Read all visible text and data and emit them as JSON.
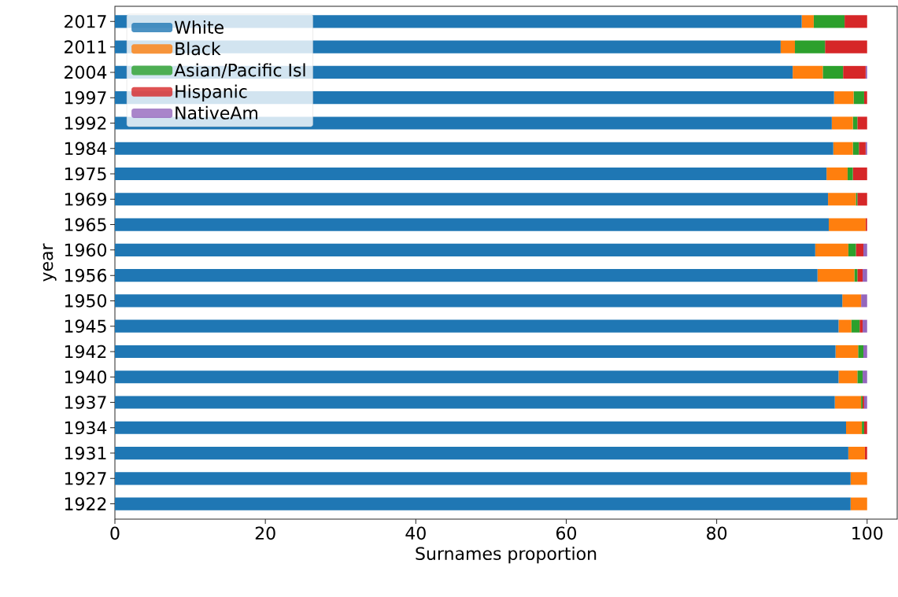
{
  "chart_data": {
    "type": "bar",
    "orientation": "horizontal",
    "stacked": true,
    "ylabel": "year",
    "xlabel": "Surnames proportion",
    "categories": [
      "2017",
      "2011",
      "2004",
      "1997",
      "1992",
      "1984",
      "1975",
      "1969",
      "1965",
      "1960",
      "1956",
      "1950",
      "1945",
      "1942",
      "1940",
      "1937",
      "1934",
      "1931",
      "1927",
      "1922"
    ],
    "series": [
      {
        "name": "White",
        "color": "#1f77b4",
        "values": [
          91.3,
          88.5,
          90.1,
          95.6,
          95.3,
          95.5,
          94.6,
          94.8,
          94.9,
          93.1,
          93.4,
          96.7,
          96.2,
          95.8,
          96.2,
          95.7,
          97.2,
          97.5,
          97.8,
          97.8
        ]
      },
      {
        "name": "Black",
        "color": "#ff7f0e",
        "values": [
          1.6,
          1.9,
          4.0,
          2.6,
          2.8,
          2.6,
          2.8,
          3.7,
          4.9,
          4.4,
          4.9,
          2.5,
          1.7,
          3.0,
          2.5,
          3.5,
          2.1,
          2.2,
          2.2,
          2.2
        ]
      },
      {
        "name": "Asian/Pacific Isl",
        "color": "#2ca02c",
        "values": [
          4.1,
          4.0,
          2.7,
          1.4,
          0.6,
          0.8,
          0.7,
          0.2,
          0,
          1.0,
          0.4,
          0,
          1.1,
          0.7,
          0.7,
          0.2,
          0.3,
          0,
          0,
          0
        ]
      },
      {
        "name": "Hispanic",
        "color": "#d62728",
        "values": [
          3.0,
          5.6,
          3.0,
          0.4,
          1.3,
          0.9,
          1.9,
          1.3,
          0.2,
          1.0,
          0.7,
          0,
          0.4,
          0,
          0,
          0.2,
          0.4,
          0.3,
          0,
          0
        ]
      },
      {
        "name": "NativeAm",
        "color": "#9467bd",
        "values": [
          0,
          0,
          0.2,
          0,
          0,
          0.2,
          0,
          0,
          0,
          0.5,
          0.6,
          0.8,
          0.6,
          0.5,
          0.6,
          0.4,
          0,
          0,
          0,
          0
        ]
      }
    ],
    "xlim": [
      0,
      104
    ],
    "xticks": [
      0,
      20,
      40,
      60,
      80,
      100
    ],
    "legend": "top left"
  }
}
